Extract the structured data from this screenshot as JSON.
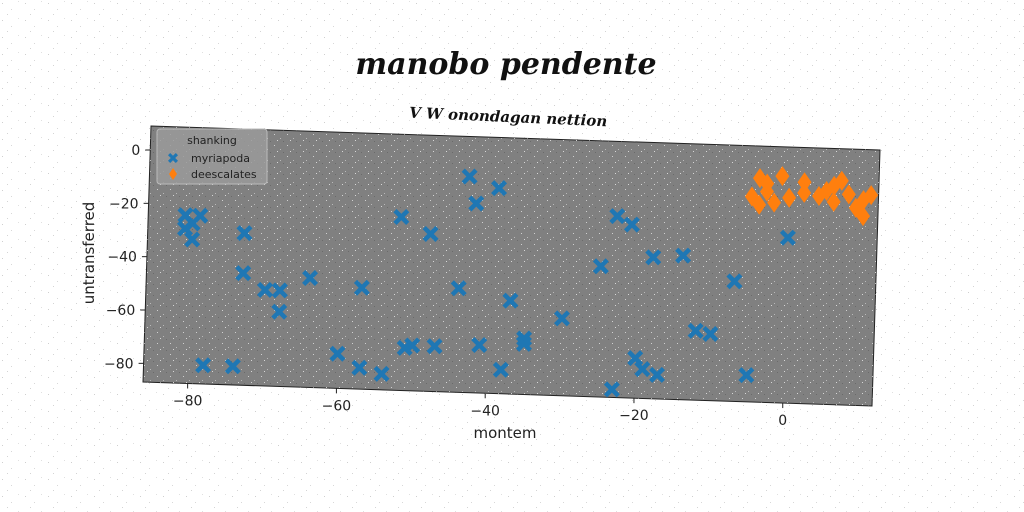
{
  "chart_data": {
    "type": "scatter",
    "title": "manobo pendente",
    "subtitle": "V W onondagan nettion",
    "xlabel": "montem",
    "ylabel": "untransferred",
    "xlim": [
      -86,
      12
    ],
    "ylim": [
      -87,
      9
    ],
    "xticks": [
      -80,
      -60,
      -40,
      -20,
      0
    ],
    "yticks": [
      0,
      -20,
      -40,
      -60,
      -80
    ],
    "xtick_labels": [
      "−80",
      "−60",
      "−40",
      "−20",
      "0"
    ],
    "ytick_labels": [
      "0",
      "−20",
      "−40",
      "−60",
      "−80"
    ],
    "grid": false,
    "legend_position": "top-left",
    "legend_title": "shanking",
    "background_color": "#808080",
    "series": [
      {
        "name": "myriapoda",
        "marker": "x-filled",
        "color": "#1f77b4",
        "points": [
          [
            -81,
            -24
          ],
          [
            -80,
            -27
          ],
          [
            -81,
            -29
          ],
          [
            -80,
            -33
          ],
          [
            -79,
            -24
          ],
          [
            -73,
            -30
          ],
          [
            -73,
            -45
          ],
          [
            -70,
            -51
          ],
          [
            -68,
            -51
          ],
          [
            -68,
            -59
          ],
          [
            -64,
            -46
          ],
          [
            -60,
            -74
          ],
          [
            -57,
            -49
          ],
          [
            -57,
            -79
          ],
          [
            -54,
            -81
          ],
          [
            -52,
            -22
          ],
          [
            -51,
            -71
          ],
          [
            -50,
            -70
          ],
          [
            -48,
            -28
          ],
          [
            -47,
            -70
          ],
          [
            -44,
            -48
          ],
          [
            -43,
            -6
          ],
          [
            -42,
            -16
          ],
          [
            -41,
            -69
          ],
          [
            -39,
            -10
          ],
          [
            -38,
            -78
          ],
          [
            -37,
            -52
          ],
          [
            -35,
            -66
          ],
          [
            -35,
            -68
          ],
          [
            -30,
            -58
          ],
          [
            -25,
            -38
          ],
          [
            -23,
            -19
          ],
          [
            -23,
            -84
          ],
          [
            -21,
            -22
          ],
          [
            -20,
            -72
          ],
          [
            -19,
            -76
          ],
          [
            -18,
            -34
          ],
          [
            -17,
            -78
          ],
          [
            -14,
            -33
          ],
          [
            -12,
            -61
          ],
          [
            -10,
            -62
          ],
          [
            -7,
            -42
          ],
          [
            -5,
            -77
          ],
          [
            0,
            -25
          ],
          [
            -78,
            -80
          ],
          [
            -74,
            -80
          ]
        ]
      },
      {
        "name": "deescalates",
        "marker": "diamond",
        "color": "#ff7f0e",
        "points": [
          [
            -5,
            -10
          ],
          [
            -4,
            -3
          ],
          [
            -4,
            -13
          ],
          [
            -3,
            -8
          ],
          [
            -2,
            -12
          ],
          [
            -1,
            -2
          ],
          [
            0,
            -10
          ],
          [
            2,
            -4
          ],
          [
            2,
            -8
          ],
          [
            4,
            -9
          ],
          [
            5,
            -7
          ],
          [
            6,
            -11
          ],
          [
            7,
            -3
          ],
          [
            8,
            -8
          ],
          [
            9,
            -13
          ],
          [
            10,
            -10
          ],
          [
            10,
            -16
          ],
          [
            11,
            -8
          ],
          [
            -3,
            -5
          ],
          [
            6,
            -5
          ]
        ]
      }
    ]
  }
}
